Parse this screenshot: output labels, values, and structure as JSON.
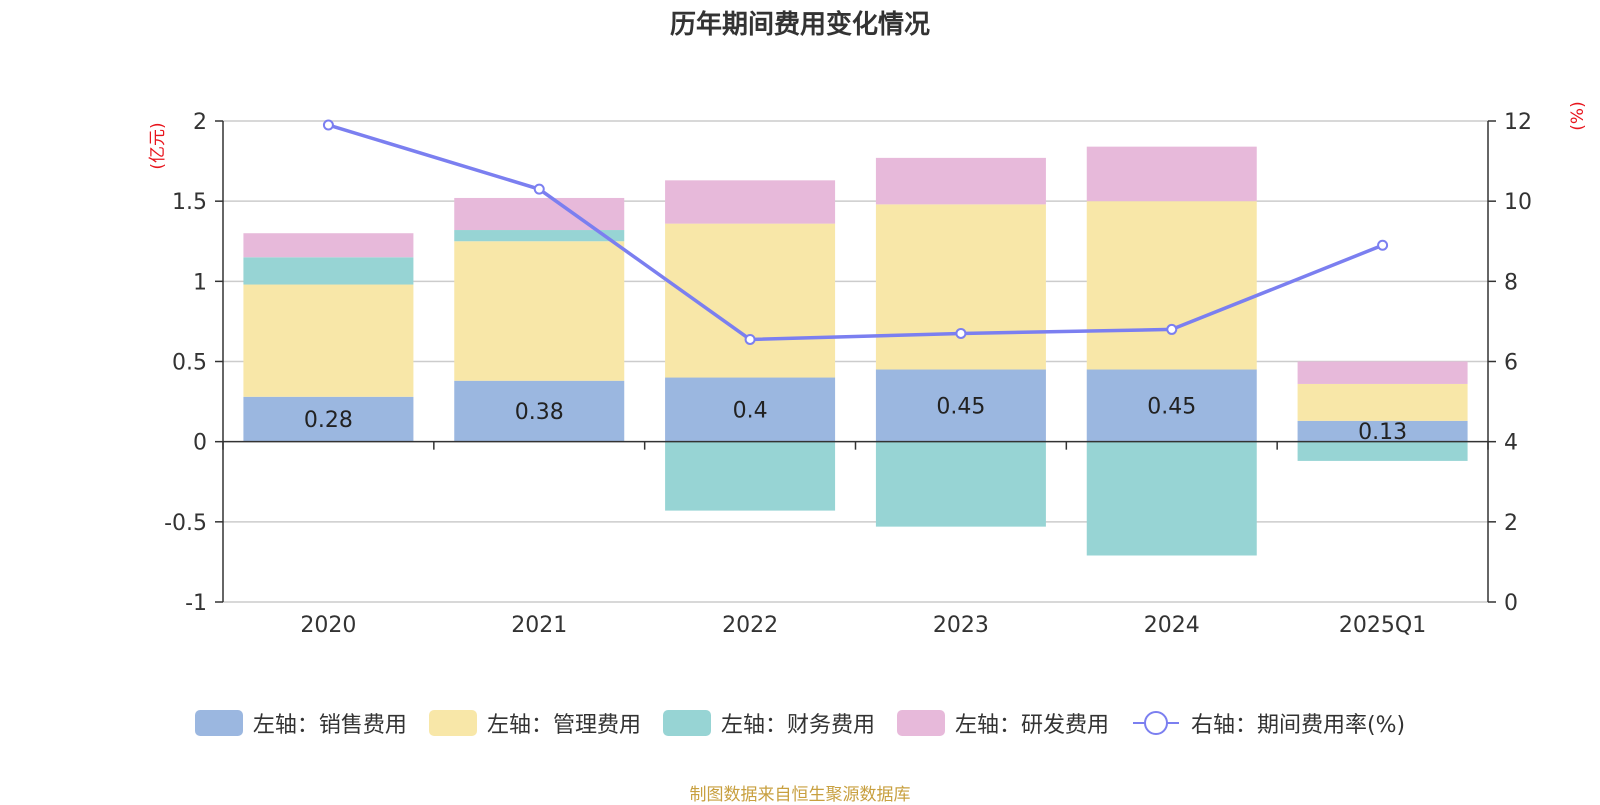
{
  "title": "历年期间费用变化情况",
  "source": "制图数据来自恒生聚源数据库",
  "colors": {
    "sales": "#9bb7e0",
    "admin": "#f8e7a8",
    "finance": "#97d4d4",
    "rd": "#e7b9da",
    "rate": "#7b7ff0",
    "axis_unit": "#e8141c"
  },
  "chart_data": {
    "type": "bar",
    "stacked": true,
    "categories": [
      "2020",
      "2021",
      "2022",
      "2023",
      "2024",
      "2025Q1"
    ],
    "left_axis": {
      "unit": "(亿元)",
      "ylim": [
        -1,
        2
      ],
      "ticks": [
        "-1",
        "-0.5",
        "0",
        "0.5",
        "1",
        "1.5",
        "2"
      ],
      "tick_values": [
        -1,
        -0.5,
        0,
        0.5,
        1,
        1.5,
        2
      ]
    },
    "right_axis": {
      "unit": "(%)",
      "ylim": [
        0,
        12
      ],
      "ticks": [
        "0",
        "2",
        "4",
        "6",
        "8",
        "10",
        "12"
      ],
      "tick_values": [
        0,
        2,
        4,
        6,
        8,
        10,
        12
      ]
    },
    "series": [
      {
        "key": "sales",
        "name": "左轴：销售费用",
        "axis": "left",
        "kind": "bar",
        "values": [
          0.28,
          0.38,
          0.4,
          0.45,
          0.45,
          0.13
        ],
        "labels": [
          "0.28",
          "0.38",
          "0.4",
          "0.45",
          "0.45",
          "0.13"
        ]
      },
      {
        "key": "admin",
        "name": "左轴：管理费用",
        "axis": "left",
        "kind": "bar",
        "values": [
          0.7,
          0.87,
          0.96,
          1.03,
          1.05,
          0.23
        ]
      },
      {
        "key": "finance",
        "name": "左轴：财务费用",
        "axis": "left",
        "kind": "bar",
        "values": [
          0.17,
          0.07,
          -0.43,
          -0.53,
          -0.71,
          -0.12
        ]
      },
      {
        "key": "rd",
        "name": "左轴：研发费用",
        "axis": "left",
        "kind": "bar",
        "values": [
          0.15,
          0.2,
          0.27,
          0.29,
          0.34,
          0.14
        ]
      },
      {
        "key": "rate",
        "name": "右轴：期间费用率(%)",
        "axis": "right",
        "kind": "line",
        "values": [
          11.9,
          10.3,
          6.55,
          6.7,
          6.8,
          8.9
        ]
      }
    ],
    "grid": true,
    "legend_position": "bottom"
  }
}
